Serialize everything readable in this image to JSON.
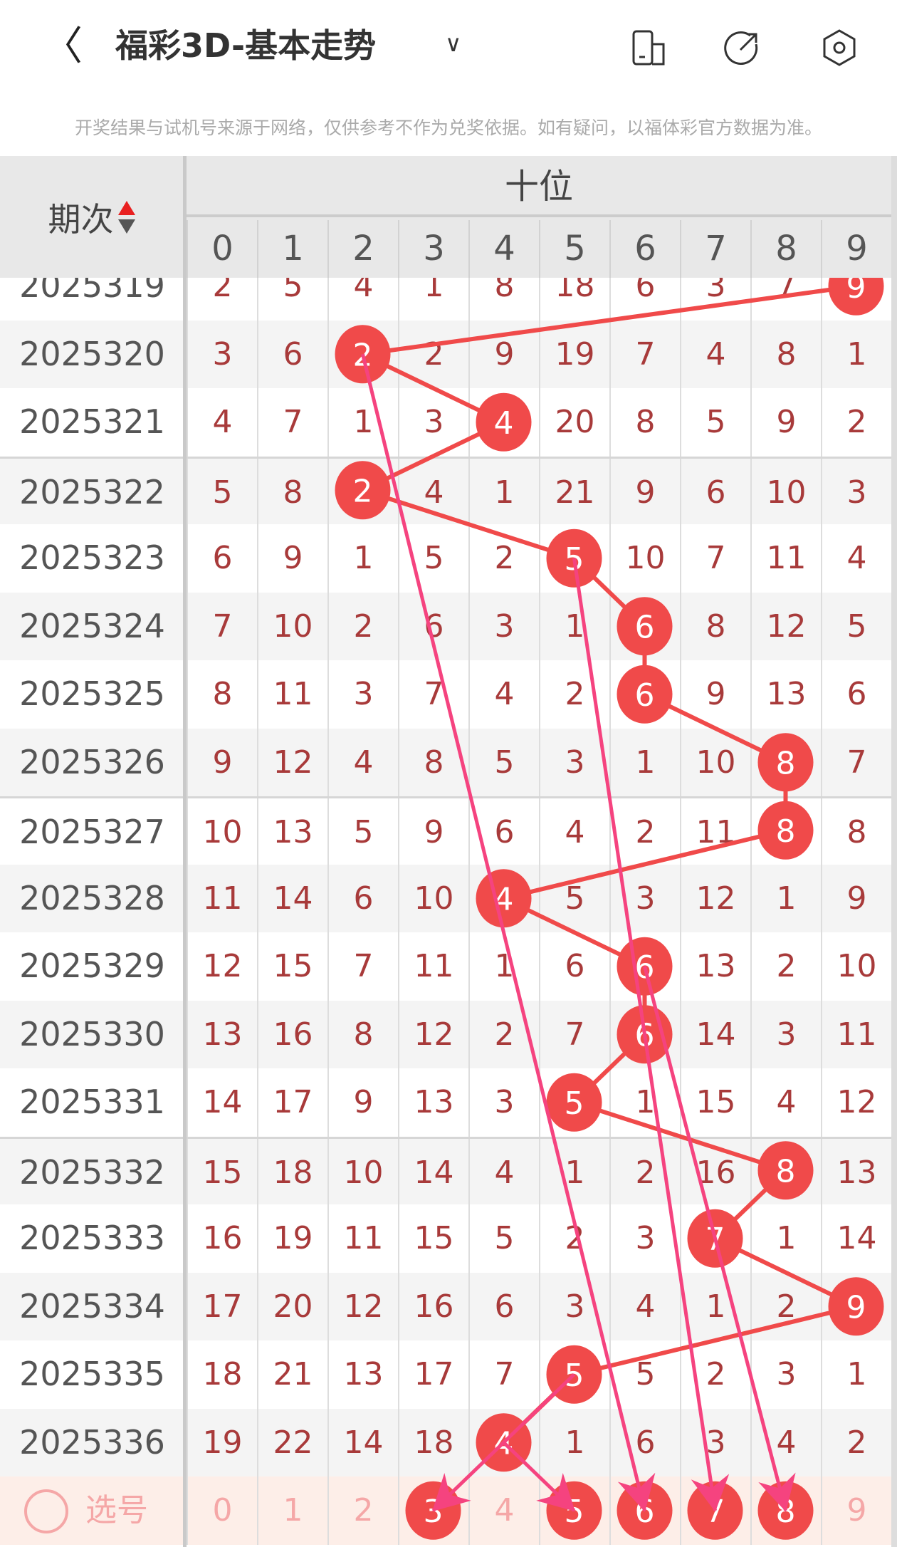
{
  "header": {
    "title": "福彩3D-基本走势",
    "back_icon": "chevron-left-icon",
    "dropdown_icon": "chevron-down-icon",
    "icons": [
      "device-switch-icon",
      "share-icon",
      "settings-icon"
    ]
  },
  "notice": "开奖结果与试机号来源于网络，仅供参考不作为兑奖依据。如有疑问，以福体彩官方数据为准。",
  "table": {
    "period_header": "期次",
    "position_header": "十位",
    "digits": [
      "0",
      "1",
      "2",
      "3",
      "4",
      "5",
      "6",
      "7",
      "8",
      "9"
    ],
    "rows": [
      {
        "period": "2025319",
        "hit": 9,
        "values": [
          "2",
          "5",
          "4",
          "1",
          "8",
          "18",
          "6",
          "3",
          "7",
          "9"
        ]
      },
      {
        "period": "2025320",
        "hit": 2,
        "values": [
          "3",
          "6",
          "2",
          "2",
          "9",
          "19",
          "7",
          "4",
          "8",
          "1"
        ]
      },
      {
        "period": "2025321",
        "hit": 4,
        "values": [
          "4",
          "7",
          "1",
          "3",
          "4",
          "20",
          "8",
          "5",
          "9",
          "2"
        ]
      },
      {
        "period": "2025322",
        "hit": 2,
        "values": [
          "5",
          "8",
          "2",
          "4",
          "1",
          "21",
          "9",
          "6",
          "10",
          "3"
        ]
      },
      {
        "period": "2025323",
        "hit": 5,
        "values": [
          "6",
          "9",
          "1",
          "5",
          "2",
          "5",
          "10",
          "7",
          "11",
          "4"
        ]
      },
      {
        "period": "2025324",
        "hit": 6,
        "values": [
          "7",
          "10",
          "2",
          "6",
          "3",
          "1",
          "6",
          "8",
          "12",
          "5"
        ]
      },
      {
        "period": "2025325",
        "hit": 6,
        "values": [
          "8",
          "11",
          "3",
          "7",
          "4",
          "2",
          "6",
          "9",
          "13",
          "6"
        ]
      },
      {
        "period": "2025326",
        "hit": 8,
        "values": [
          "9",
          "12",
          "4",
          "8",
          "5",
          "3",
          "1",
          "10",
          "8",
          "7"
        ]
      },
      {
        "period": "2025327",
        "hit": 8,
        "values": [
          "10",
          "13",
          "5",
          "9",
          "6",
          "4",
          "2",
          "11",
          "8",
          "8"
        ]
      },
      {
        "period": "2025328",
        "hit": 4,
        "values": [
          "11",
          "14",
          "6",
          "10",
          "4",
          "5",
          "3",
          "12",
          "1",
          "9"
        ]
      },
      {
        "period": "2025329",
        "hit": 6,
        "values": [
          "12",
          "15",
          "7",
          "11",
          "1",
          "6",
          "6",
          "13",
          "2",
          "10"
        ]
      },
      {
        "period": "2025330",
        "hit": 6,
        "values": [
          "13",
          "16",
          "8",
          "12",
          "2",
          "7",
          "6",
          "14",
          "3",
          "11"
        ]
      },
      {
        "period": "2025331",
        "hit": 5,
        "values": [
          "14",
          "17",
          "9",
          "13",
          "3",
          "5",
          "1",
          "15",
          "4",
          "12"
        ]
      },
      {
        "period": "2025332",
        "hit": 8,
        "values": [
          "15",
          "18",
          "10",
          "14",
          "4",
          "1",
          "2",
          "16",
          "8",
          "13"
        ]
      },
      {
        "period": "2025333",
        "hit": 7,
        "values": [
          "16",
          "19",
          "11",
          "15",
          "5",
          "2",
          "3",
          "7",
          "1",
          "14"
        ]
      },
      {
        "period": "2025334",
        "hit": 9,
        "values": [
          "17",
          "20",
          "12",
          "16",
          "6",
          "3",
          "4",
          "1",
          "2",
          "9"
        ]
      },
      {
        "period": "2025335",
        "hit": 5,
        "values": [
          "18",
          "21",
          "13",
          "17",
          "7",
          "5",
          "5",
          "2",
          "3",
          "1"
        ]
      },
      {
        "period": "2025336",
        "hit": 4,
        "values": [
          "19",
          "22",
          "14",
          "18",
          "4",
          "1",
          "6",
          "3",
          "4",
          "2"
        ]
      }
    ],
    "select_row": {
      "label": "选号",
      "values": [
        "0",
        "1",
        "2",
        "3",
        "4",
        "5",
        "6",
        "7",
        "8",
        "9"
      ],
      "selected": [
        3,
        5,
        6,
        7,
        8
      ]
    },
    "arrows": [
      {
        "from_period": "2025320",
        "to_digit": 6
      },
      {
        "from_period": "2025323",
        "to_digit": 7
      },
      {
        "from_period": "2025329",
        "to_digit": 8
      },
      {
        "from_period": "2025335",
        "to_digit": 3
      },
      {
        "from_period": "2025336",
        "to_digit": 5
      }
    ]
  },
  "colors": {
    "ball": "#f04a4a",
    "trend_line": "#f04a4a",
    "arrow": "#f5437f",
    "number": "#a83a3a",
    "select_row_bg": "#fdeee8"
  }
}
